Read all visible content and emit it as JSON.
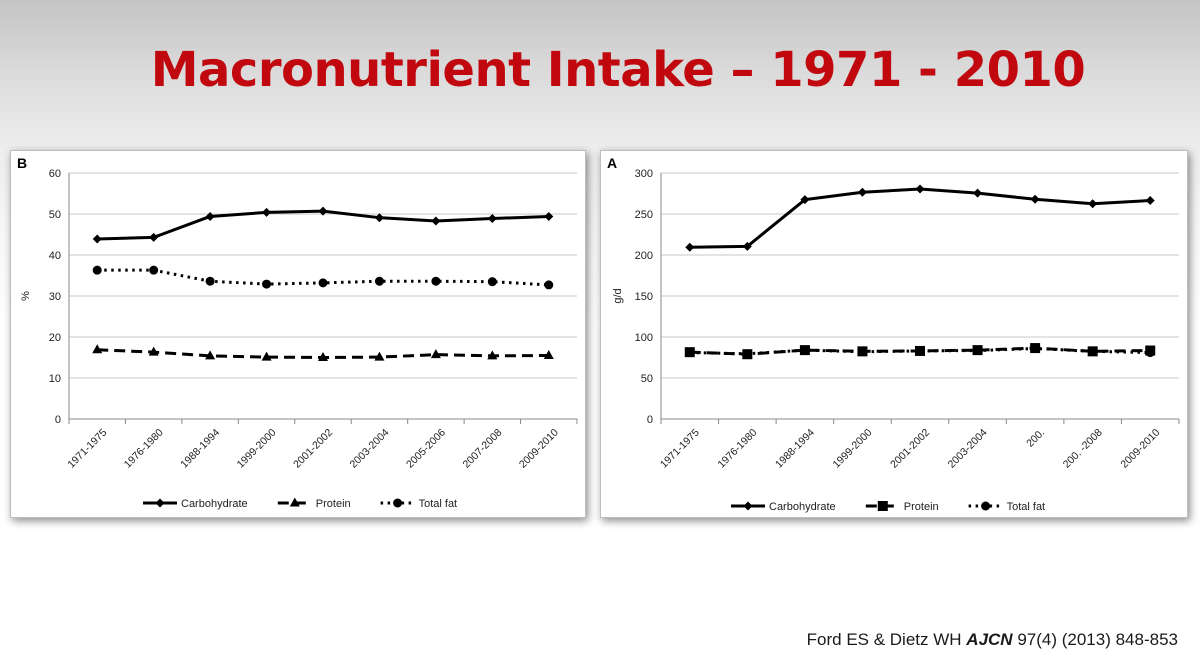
{
  "title": "Macronutrient Intake – 1971 - 2010",
  "citation": {
    "authors": "Ford ES & Dietz WH",
    "journal": "AJCN",
    "details": "97(4) (2013) 848-853"
  },
  "colors": {
    "title": "#c0080e",
    "series": "#000000"
  },
  "chart_data": [
    {
      "type": "line",
      "panel": "B",
      "ylabel": "%",
      "xlabel": "",
      "ylim": [
        0,
        60
      ],
      "yticks": [
        0,
        10,
        20,
        30,
        40,
        50,
        60
      ],
      "categories": [
        "1971-1975",
        "1976-1980",
        "1988-1994",
        "1999-2000",
        "2001-2002",
        "2003-2004",
        "2005-2006",
        "2007-2008",
        "2009-2010"
      ],
      "series": [
        {
          "name": "Carbohydrate",
          "marker": "diamond",
          "dash": "solid",
          "values": [
            43.9,
            44.3,
            49.4,
            50.4,
            50.7,
            49.1,
            48.3,
            48.9,
            49.4
          ]
        },
        {
          "name": "Protein",
          "marker": "triangle",
          "dash": "dashed",
          "values": [
            16.9,
            16.3,
            15.4,
            15.1,
            15.0,
            15.1,
            15.7,
            15.4,
            15.5
          ]
        },
        {
          "name": "Total fat",
          "marker": "circle",
          "dash": "dotted",
          "values": [
            36.3,
            36.3,
            33.6,
            32.9,
            33.2,
            33.6,
            33.6,
            33.5,
            32.7
          ]
        }
      ],
      "grid": true,
      "legend": "bottom"
    },
    {
      "type": "line",
      "panel": "A",
      "ylabel": "g/d",
      "xlabel": "",
      "ylim": [
        0,
        300
      ],
      "yticks": [
        0,
        50,
        100,
        150,
        200,
        250,
        300
      ],
      "categories": [
        "1971-1975",
        "1976-1980",
        "1988-1994",
        "1999-2000",
        "2001-2002",
        "2003-2004",
        "200.",
        "200. -2008",
        "2009-2010"
      ],
      "series": [
        {
          "name": "Carbohydrate",
          "marker": "diamond",
          "dash": "solid",
          "values": [
            209.5,
            210.5,
            267.5,
            276.5,
            280.5,
            275.5,
            268.0,
            262.5,
            266.5
          ]
        },
        {
          "name": "Protein",
          "marker": "square",
          "dash": "dashed",
          "values": [
            81.5,
            79.0,
            84.0,
            82.5,
            83.0,
            84.0,
            86.5,
            82.5,
            83.5
          ]
        },
        {
          "name": "Total fat",
          "marker": "circle",
          "dash": "dotted",
          "values": [
            81.0,
            79.5,
            84.0,
            82.0,
            83.0,
            83.5,
            86.0,
            82.5,
            81.0
          ]
        }
      ],
      "grid": true,
      "legend": "bottom"
    }
  ]
}
